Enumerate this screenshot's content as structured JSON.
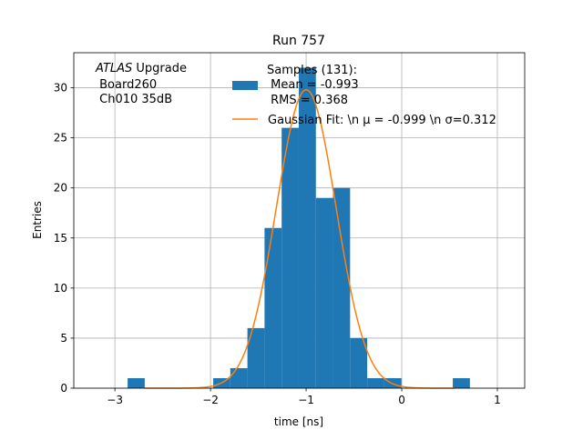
{
  "chart_data": {
    "type": "bar",
    "title": "Run 757",
    "xlabel": "time [ns]",
    "ylabel": "Entries",
    "xlim": [
      -3.43,
      1.286
    ],
    "ylim": [
      0,
      33.5
    ],
    "xticks": [
      -3,
      -2,
      -1,
      0,
      1
    ],
    "xtick_labels": [
      "−3",
      "−2",
      "−1",
      "0",
      "1"
    ],
    "yticks": [
      0,
      5,
      10,
      15,
      20,
      25,
      30
    ],
    "grid": true,
    "hist": {
      "bin_start": -2.867,
      "bin_width": 0.179,
      "counts": [
        1,
        0,
        0,
        0,
        0,
        1,
        2,
        6,
        16,
        26,
        32,
        19,
        20,
        5,
        1,
        1,
        0,
        0,
        0,
        1
      ],
      "color": "#1f77b4"
    },
    "fit": {
      "mu": -0.999,
      "sigma": 0.312,
      "amplitude": 29.8,
      "range": [
        -2.7,
        0.56
      ],
      "color": "#ff7f0e"
    },
    "annotation": {
      "italic": "ATLAS",
      "rest": " Upgrade",
      "line2": " Board260",
      "line3": " Ch010 35dB"
    },
    "legend": {
      "placement": "top-right",
      "entries": [
        {
          "lines": [
            "Samples (131):",
            " Mean = -0.993",
            " RMS = 0.368"
          ]
        },
        {
          "lines": [
            "Gaussian Fit: \\n μ = -0.999 \\n σ=0.312"
          ]
        }
      ]
    }
  }
}
